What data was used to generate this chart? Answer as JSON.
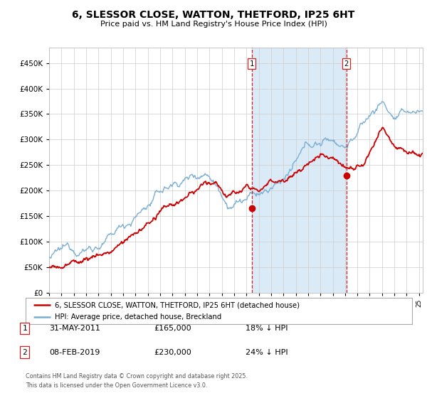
{
  "title": "6, SLESSOR CLOSE, WATTON, THETFORD, IP25 6HT",
  "subtitle": "Price paid vs. HM Land Registry's House Price Index (HPI)",
  "legend_line1": "6, SLESSOR CLOSE, WATTON, THETFORD, IP25 6HT (detached house)",
  "legend_line2": "HPI: Average price, detached house, Breckland",
  "transaction1_date": "31-MAY-2011",
  "transaction1_price": "£165,000",
  "transaction1_hpi": "18% ↓ HPI",
  "transaction1_label": "1",
  "transaction2_date": "08-FEB-2019",
  "transaction2_price": "£230,000",
  "transaction2_hpi": "24% ↓ HPI",
  "transaction2_label": "2",
  "footnote_line1": "Contains HM Land Registry data © Crown copyright and database right 2025.",
  "footnote_line2": "This data is licensed under the Open Government Licence v3.0.",
  "hpi_color": "#7aafd4",
  "price_color": "#cc0000",
  "background_color": "#ffffff",
  "plot_bg_color": "#ffffff",
  "shade_color": "#daeaf7",
  "grid_color": "#cccccc",
  "ylim_max": 480000,
  "t1_year": 2011.42,
  "t2_year": 2019.1,
  "t1_price": 165000,
  "t2_price": 230000,
  "xstart": 1995,
  "xend": 2025.3
}
